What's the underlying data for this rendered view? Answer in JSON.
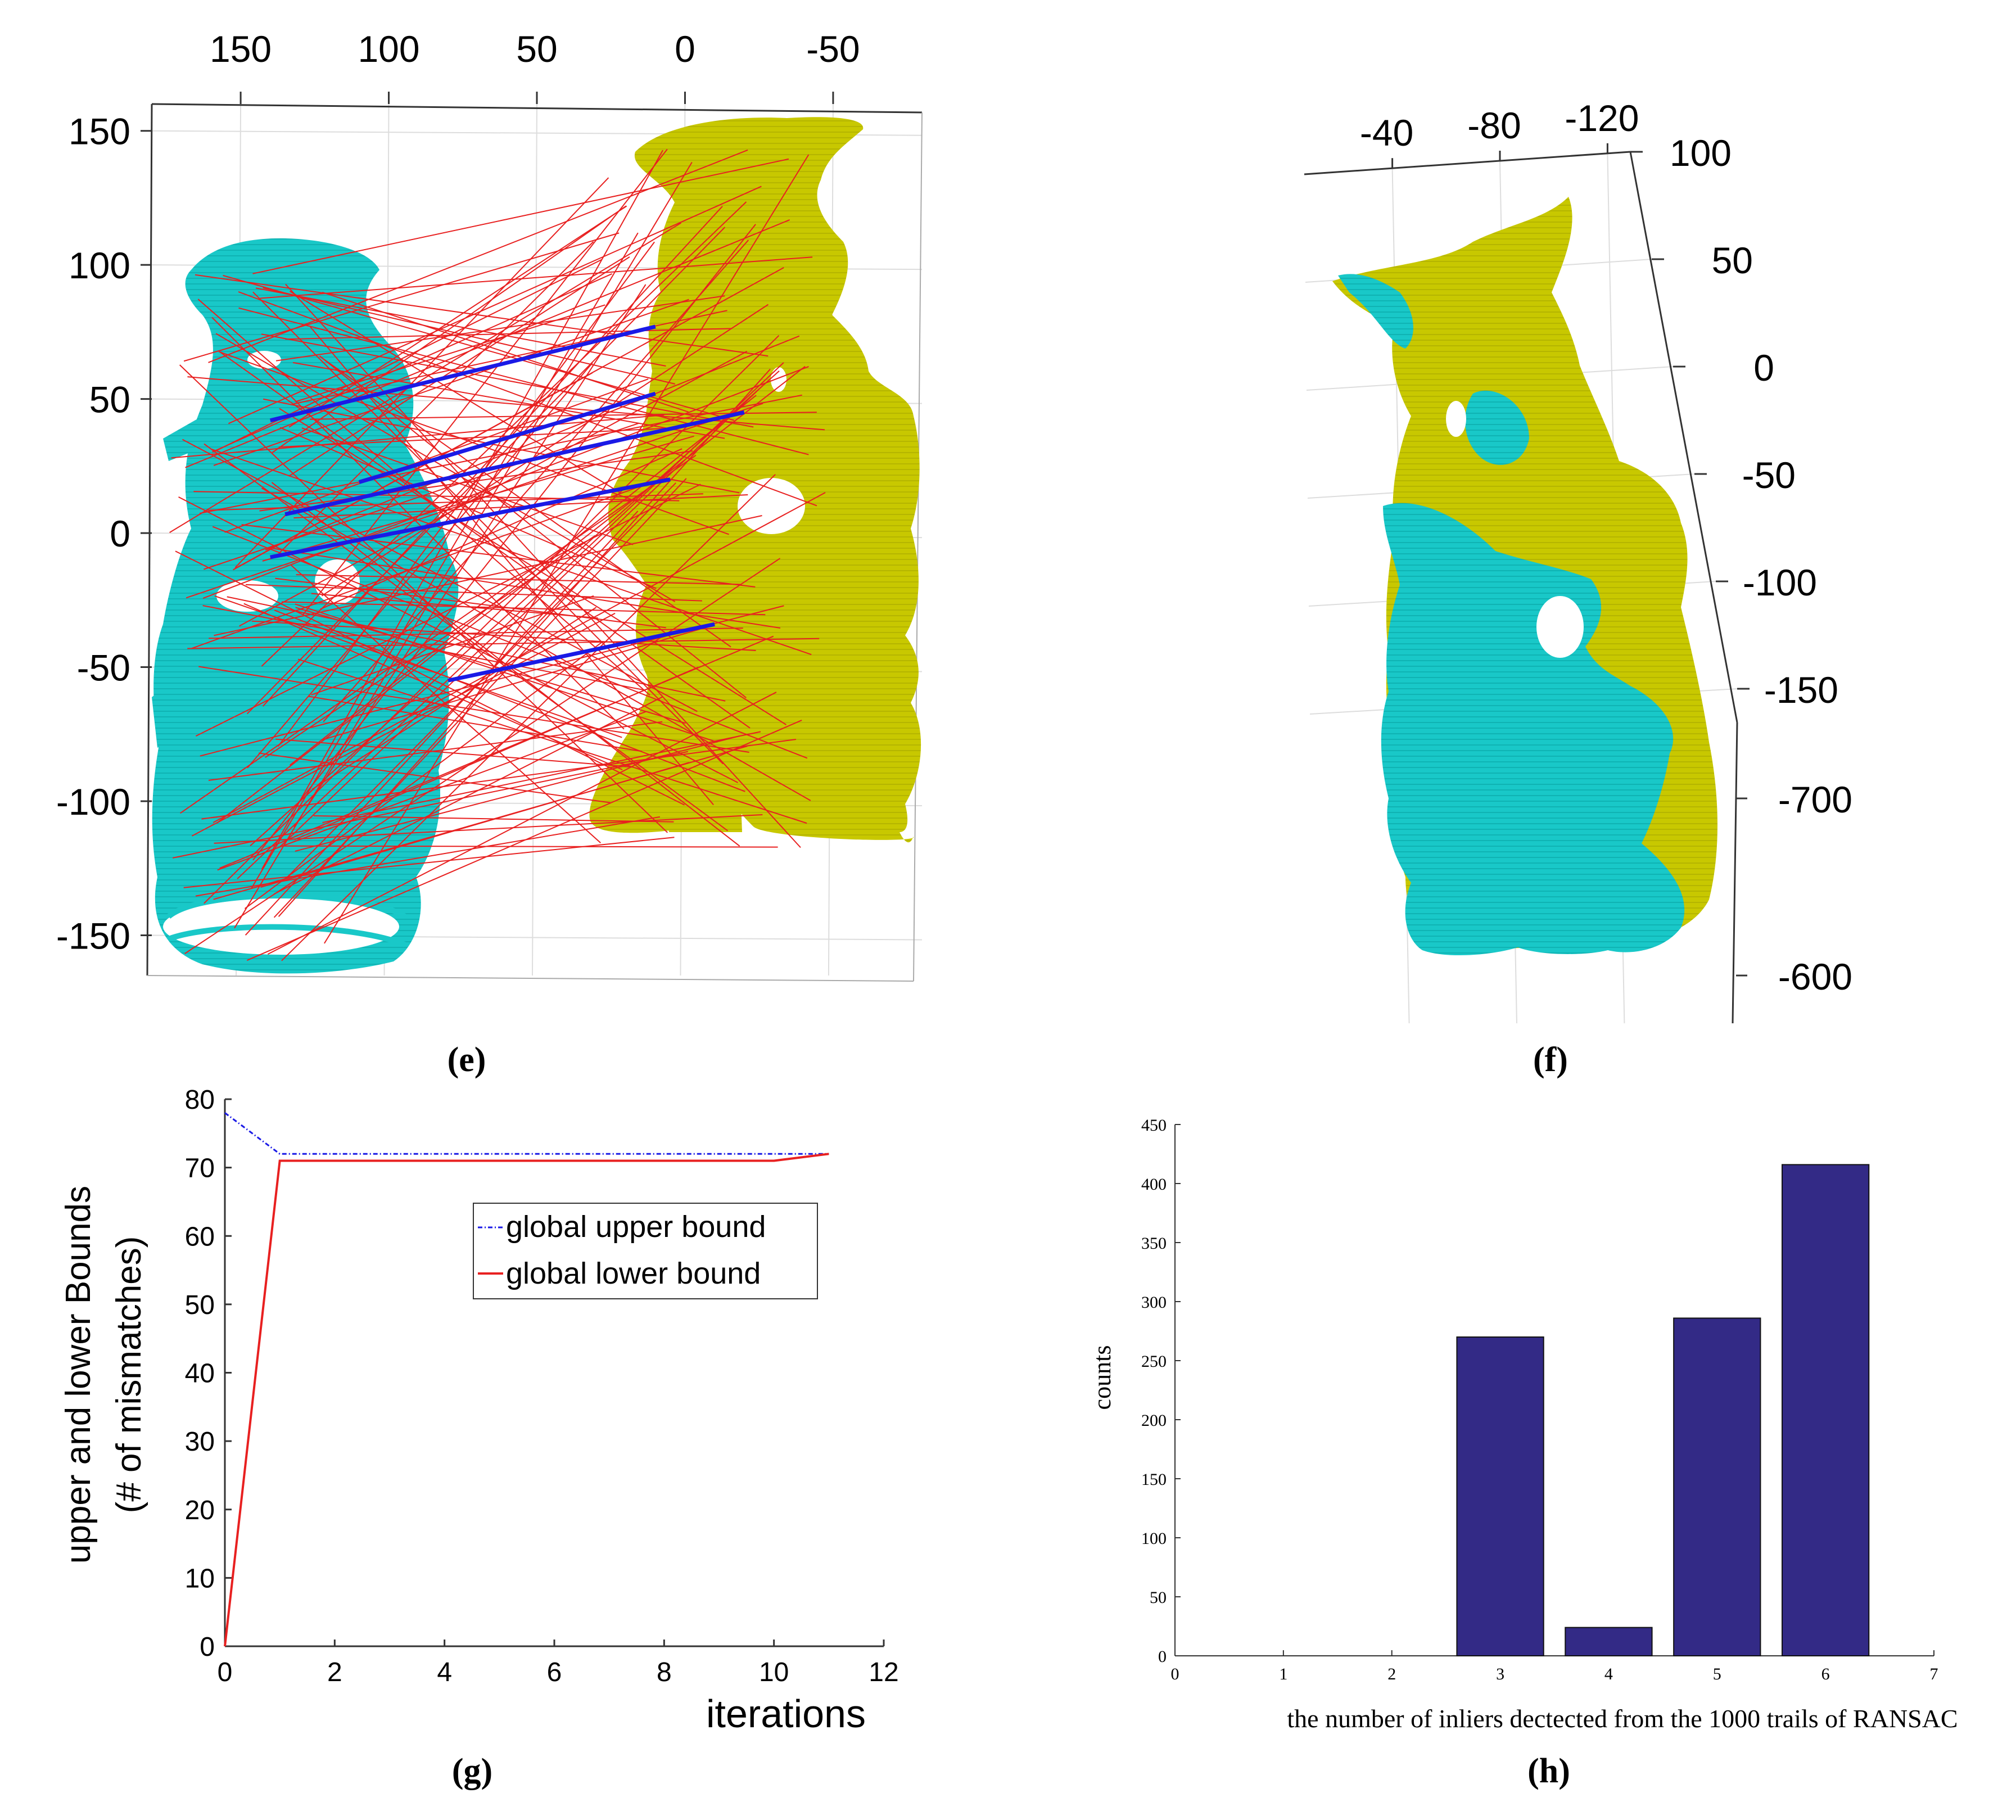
{
  "colors": {
    "cyan": "#19c8c8",
    "olive": "#c8c800",
    "red": "#e82020",
    "blue": "#1a1ae6",
    "bar": "#332a86",
    "grid": "#dddddd"
  },
  "chart_data": [
    {
      "panel": "e",
      "type": "scatter",
      "caption": "(e)",
      "description_type": "3d point-cloud correspondence view",
      "x_ticks": [
        "150",
        "100",
        "50",
        "0",
        "-50"
      ],
      "y_ticks": [
        "150",
        "100",
        "50",
        "0",
        "-50",
        "-100",
        "-150"
      ],
      "xlim": [
        180,
        -80
      ],
      "ylim": [
        -165,
        160
      ],
      "inlier_matches": [
        [
          140,
          42,
          10,
          77
        ],
        [
          110,
          19,
          10,
          52
        ],
        [
          135,
          7,
          -20,
          45
        ],
        [
          140,
          -9,
          5,
          20
        ],
        [
          80,
          -55,
          -10,
          -34
        ]
      ]
    },
    {
      "panel": "f",
      "type": "scatter",
      "caption": "(f)",
      "description_type": "3d aligned point clouds",
      "x_ticks": [
        "-40",
        "-80",
        "-120"
      ],
      "y_ticks": [
        "100",
        "50",
        "0",
        "-50",
        "-100",
        "-150"
      ],
      "z_ticks": [
        "-700",
        "-600"
      ]
    },
    {
      "panel": "g",
      "type": "line",
      "caption": "(g)",
      "xlabel": "iterations",
      "ylabel_line1": "upper and lower Bounds",
      "ylabel_line2": "(# of mismatches)",
      "xlim": [
        0,
        12
      ],
      "ylim": [
        0,
        80
      ],
      "x_ticks": [
        "0",
        "2",
        "4",
        "6",
        "8",
        "10",
        "12"
      ],
      "y_ticks": [
        "0",
        "10",
        "20",
        "30",
        "40",
        "50",
        "60",
        "70",
        "80"
      ],
      "series": [
        {
          "name": "global upper bound",
          "x": [
            0,
            1,
            2,
            3,
            4,
            5,
            6,
            7,
            8,
            9,
            10,
            11
          ],
          "values": [
            78,
            72,
            72,
            72,
            72,
            72,
            72,
            72,
            72,
            72,
            72,
            72
          ]
        },
        {
          "name": "global lower bound",
          "x": [
            0,
            1,
            2,
            3,
            4,
            5,
            6,
            7,
            8,
            9,
            10,
            11
          ],
          "values": [
            0,
            71,
            71,
            71,
            71,
            71,
            71,
            71,
            71,
            71,
            71,
            72
          ]
        }
      ],
      "legend_position": "center-right"
    },
    {
      "panel": "h",
      "type": "bar",
      "caption": "(h)",
      "xlabel": "the number of inliers dectected from the 1000 trails of RANSAC",
      "ylabel": "counts",
      "xlim": [
        0,
        7
      ],
      "ylim": [
        0,
        450
      ],
      "x_ticks": [
        "0",
        "1",
        "2",
        "3",
        "4",
        "5",
        "6",
        "7"
      ],
      "y_ticks": [
        "0",
        "50",
        "100",
        "150",
        "200",
        "250",
        "300",
        "350",
        "400",
        "450"
      ],
      "categories": [
        3,
        4,
        5,
        6
      ],
      "values": [
        270,
        24,
        286,
        416
      ]
    }
  ]
}
